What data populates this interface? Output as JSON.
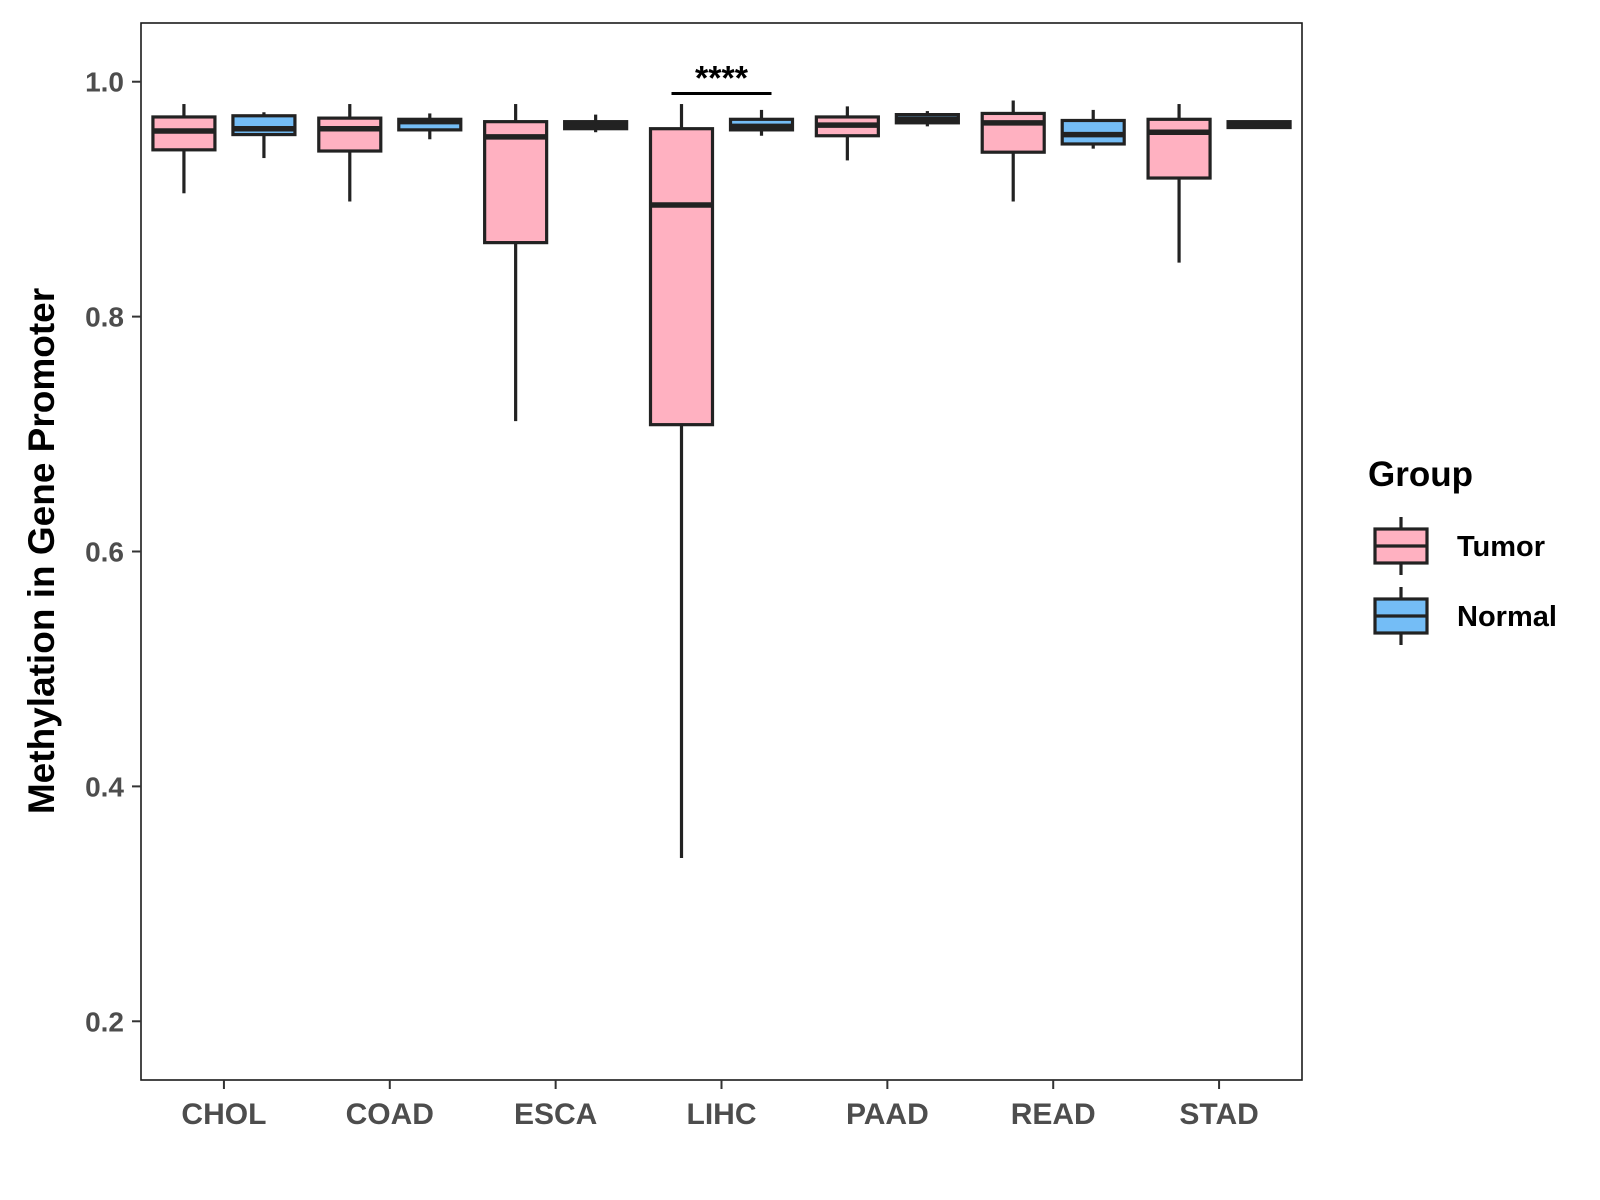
{
  "chart_data": {
    "type": "boxplot",
    "title": "",
    "xlabel": "",
    "ylabel": "Methylation in Gene Promoter",
    "ylim": [
      0.15,
      1.05
    ],
    "yticks": [
      "0.2",
      "0.4",
      "0.6",
      "0.8",
      "1.0"
    ],
    "ytick_values": [
      0.2,
      0.4,
      0.6,
      0.8,
      1.0
    ],
    "grid": false,
    "categories": [
      "CHOL",
      "COAD",
      "ESCA",
      "LIHC",
      "PAAD",
      "READ",
      "STAD"
    ],
    "legend": {
      "title": "Group",
      "position": "right",
      "entries": [
        {
          "name": "Tumor",
          "color": "#FFB1C1"
        },
        {
          "name": "Normal",
          "color": "#74BDF6"
        }
      ]
    },
    "series": [
      {
        "name": "Tumor",
        "color": "#FFB1C1",
        "boxes": [
          {
            "min": 0.905,
            "q1": 0.942,
            "median": 0.958,
            "q3": 0.97,
            "max": 0.981
          },
          {
            "min": 0.898,
            "q1": 0.941,
            "median": 0.96,
            "q3": 0.969,
            "max": 0.981
          },
          {
            "min": 0.711,
            "q1": 0.863,
            "median": 0.953,
            "q3": 0.966,
            "max": 0.981
          },
          {
            "min": 0.339,
            "q1": 0.708,
            "median": 0.895,
            "q3": 0.96,
            "max": 0.981
          },
          {
            "min": 0.933,
            "q1": 0.954,
            "median": 0.963,
            "q3": 0.97,
            "max": 0.979
          },
          {
            "min": 0.898,
            "q1": 0.94,
            "median": 0.965,
            "q3": 0.973,
            "max": 0.984
          },
          {
            "min": 0.846,
            "q1": 0.918,
            "median": 0.957,
            "q3": 0.968,
            "max": 0.981
          }
        ]
      },
      {
        "name": "Normal",
        "color": "#74BDF6",
        "boxes": [
          {
            "min": 0.935,
            "q1": 0.955,
            "median": 0.96,
            "q3": 0.971,
            "max": 0.974
          },
          {
            "min": 0.951,
            "q1": 0.959,
            "median": 0.966,
            "q3": 0.968,
            "max": 0.973
          },
          {
            "min": 0.957,
            "q1": 0.96,
            "median": 0.963,
            "q3": 0.966,
            "max": 0.972
          },
          {
            "min": 0.954,
            "q1": 0.959,
            "median": 0.962,
            "q3": 0.968,
            "max": 0.976
          },
          {
            "min": 0.962,
            "q1": 0.965,
            "median": 0.968,
            "q3": 0.972,
            "max": 0.975
          },
          {
            "min": 0.943,
            "q1": 0.947,
            "median": 0.955,
            "q3": 0.967,
            "max": 0.976
          },
          {
            "min": 0.96,
            "q1": 0.961,
            "median": 0.963,
            "q3": 0.966,
            "max": 0.967
          }
        ]
      }
    ],
    "annotations": [
      {
        "text": "****",
        "category": "LIHC",
        "y": 0.99
      }
    ]
  }
}
